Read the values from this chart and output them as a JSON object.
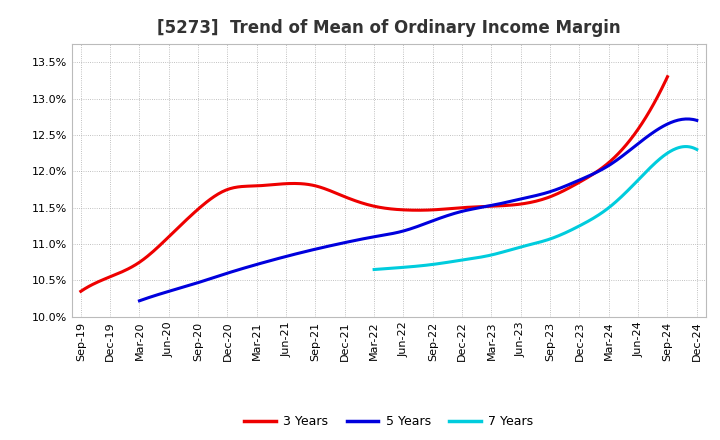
{
  "title": "[5273]  Trend of Mean of Ordinary Income Margin",
  "x_labels": [
    "Sep-19",
    "Dec-19",
    "Mar-20",
    "Jun-20",
    "Sep-20",
    "Dec-20",
    "Mar-21",
    "Jun-21",
    "Sep-21",
    "Dec-21",
    "Mar-22",
    "Jun-22",
    "Sep-22",
    "Dec-22",
    "Mar-23",
    "Jun-23",
    "Sep-23",
    "Dec-23",
    "Mar-24",
    "Jun-24",
    "Sep-24",
    "Dec-24"
  ],
  "ylim": [
    10.0,
    13.75
  ],
  "yticks": [
    10.0,
    10.5,
    11.0,
    11.5,
    12.0,
    12.5,
    13.0,
    13.5
  ],
  "series": {
    "3 Years": {
      "color": "#ee0000",
      "values": [
        10.35,
        10.55,
        10.75,
        11.1,
        11.48,
        11.75,
        11.8,
        11.83,
        11.8,
        11.65,
        11.52,
        11.47,
        11.47,
        11.5,
        11.52,
        11.55,
        11.65,
        11.85,
        12.12,
        12.58,
        13.3,
        null
      ]
    },
    "5 Years": {
      "color": "#0000dd",
      "values": [
        null,
        null,
        10.22,
        10.35,
        10.47,
        10.6,
        10.72,
        10.83,
        10.93,
        11.02,
        11.1,
        11.18,
        11.32,
        11.45,
        11.53,
        11.62,
        11.72,
        11.88,
        12.08,
        12.38,
        12.65,
        12.7
      ]
    },
    "7 Years": {
      "color": "#00ccdd",
      "values": [
        null,
        null,
        null,
        null,
        null,
        null,
        null,
        null,
        null,
        null,
        10.65,
        10.68,
        10.72,
        10.78,
        10.85,
        10.96,
        11.07,
        11.25,
        11.5,
        11.88,
        12.25,
        12.3
      ]
    },
    "10 Years": {
      "color": "#007700",
      "values": [
        null,
        null,
        null,
        null,
        null,
        null,
        null,
        null,
        null,
        null,
        null,
        null,
        null,
        null,
        null,
        null,
        null,
        null,
        null,
        null,
        null,
        null
      ]
    }
  },
  "background_color": "#ffffff",
  "plot_bg_color": "#ffffff",
  "grid_color": "#999999",
  "title_fontsize": 12,
  "tick_fontsize": 8,
  "legend_fontsize": 9
}
